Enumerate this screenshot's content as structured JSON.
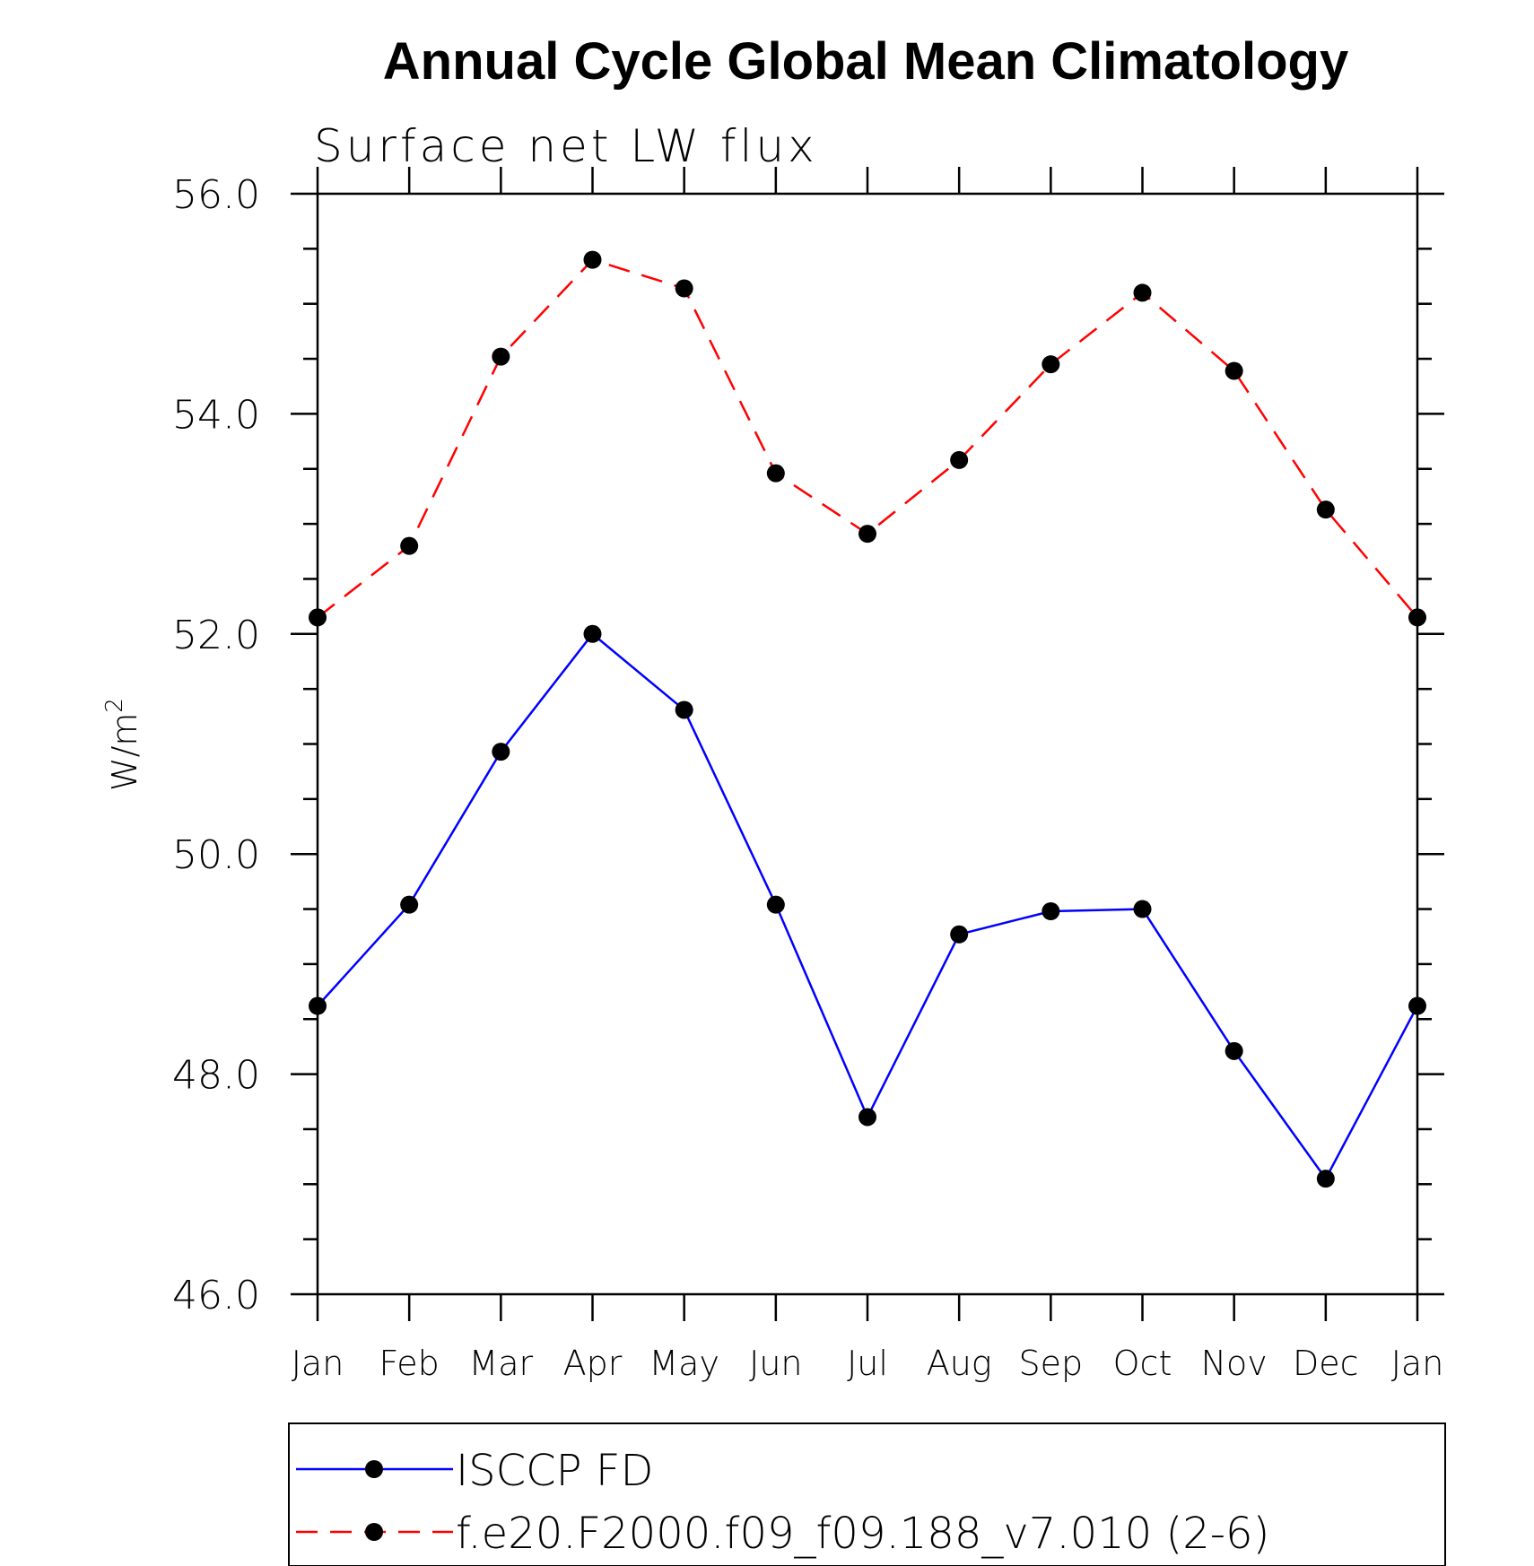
{
  "chart_data": {
    "type": "line",
    "title": "Annual Cycle Global Mean Climatology",
    "subtitle": "Surface net LW flux",
    "xlabel": "",
    "ylabel": "W/m",
    "ylabel_superscript": "2",
    "ylim": [
      46.0,
      56.0
    ],
    "yticks": [
      "46.0",
      "48.0",
      "50.0",
      "52.0",
      "54.0",
      "56.0"
    ],
    "categories": [
      "Jan",
      "Feb",
      "Mar",
      "Apr",
      "May",
      "Jun",
      "Jul",
      "Aug",
      "Sep",
      "Oct",
      "Nov",
      "Dec",
      "Jan"
    ],
    "grid": false,
    "legend_position": "bottom",
    "series": [
      {
        "name": "ISCCP FD",
        "color": "#0000ff",
        "dash": "solid",
        "values": [
          48.62,
          49.54,
          50.93,
          52.0,
          51.31,
          49.54,
          47.61,
          49.27,
          49.48,
          49.5,
          48.21,
          47.05,
          48.62
        ]
      },
      {
        "name": "f.e20.F2000.f09_f09.188_v7.010 (2-6)",
        "color": "#ff0000",
        "dash": "dashed",
        "values": [
          52.15,
          52.8,
          54.52,
          55.4,
          55.14,
          53.46,
          52.91,
          53.58,
          54.45,
          55.1,
          54.39,
          53.13,
          52.15
        ]
      }
    ]
  }
}
